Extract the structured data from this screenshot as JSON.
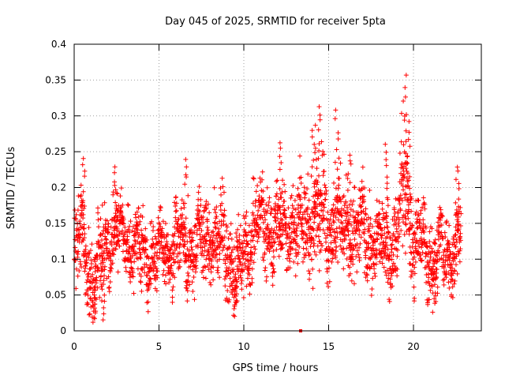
{
  "chart_data": {
    "type": "scatter",
    "title": "Day 045 of 2025, SRMTID for receiver 5pta",
    "xlabel": "GPS time / hours",
    "ylabel": "SRMTID / TECUs",
    "xlim": [
      0,
      24
    ],
    "ylim": [
      0,
      0.4
    ],
    "x_ticks": [
      0,
      5,
      10,
      15,
      20
    ],
    "x_tick_labels": [
      "0",
      "5",
      "10",
      "15",
      "20"
    ],
    "y_ticks": [
      0,
      0.05,
      0.1,
      0.15,
      0.2,
      0.25,
      0.3,
      0.35,
      0.4
    ],
    "y_tick_labels": [
      "0",
      "0.05",
      "0.1",
      "0.15",
      "0.2",
      "0.25",
      "0.3",
      "0.35",
      "0.4"
    ],
    "grid": true,
    "marker": "+",
    "colors": {
      "points": "#ff0000",
      "grid": "#a0a0a0",
      "axes": "#000000"
    },
    "series": [
      {
        "name": "SRMTID",
        "summary": "approx. 3000 points per 30 s epoch, 0.00-22.8 h; mostly 0.05-0.20 TECU",
        "envelope_x": [
          0,
          0.5,
          1,
          1.5,
          2,
          3,
          4,
          5,
          6,
          7,
          8,
          9,
          9.5,
          10,
          10.5,
          11,
          12,
          13,
          14,
          14.5,
          15,
          16,
          17,
          18,
          19,
          19.5,
          20,
          21,
          22,
          22.8
        ],
        "envelope_y": [
          0.115,
          0.13,
          0.075,
          0.09,
          0.135,
          0.13,
          0.11,
          0.1,
          0.125,
          0.115,
          0.13,
          0.12,
          0.08,
          0.1,
          0.14,
          0.15,
          0.14,
          0.145,
          0.155,
          0.17,
          0.15,
          0.14,
          0.135,
          0.12,
          0.13,
          0.2,
          0.13,
          0.105,
          0.11,
          0.13
        ],
        "spread_y": [
          0.04,
          0.04,
          0.035,
          0.04,
          0.04,
          0.035,
          0.035,
          0.035,
          0.035,
          0.035,
          0.035,
          0.04,
          0.035,
          0.035,
          0.04,
          0.04,
          0.035,
          0.035,
          0.045,
          0.05,
          0.045,
          0.04,
          0.04,
          0.035,
          0.04,
          0.06,
          0.04,
          0.035,
          0.035,
          0.035
        ],
        "peaks": [
          {
            "x": 0.5,
            "y": 0.24
          },
          {
            "x": 2.5,
            "y": 0.225
          },
          {
            "x": 6.6,
            "y": 0.24
          },
          {
            "x": 12.2,
            "y": 0.265
          },
          {
            "x": 14.1,
            "y": 0.29
          },
          {
            "x": 14.4,
            "y": 0.315
          },
          {
            "x": 15.5,
            "y": 0.305
          },
          {
            "x": 16.2,
            "y": 0.25
          },
          {
            "x": 18.4,
            "y": 0.265
          },
          {
            "x": 19.5,
            "y": 0.355
          },
          {
            "x": 19.7,
            "y": 0.3
          },
          {
            "x": 22.6,
            "y": 0.23
          }
        ],
        "troughs": [
          {
            "x": 1.3,
            "y": 0.02
          },
          {
            "x": 1.7,
            "y": 0.015
          },
          {
            "x": 9.5,
            "y": 0.035
          },
          {
            "x": 21.2,
            "y": 0.03
          }
        ],
        "zero_points": [
          {
            "x": 13.35,
            "y": 0.0
          }
        ]
      }
    ]
  }
}
